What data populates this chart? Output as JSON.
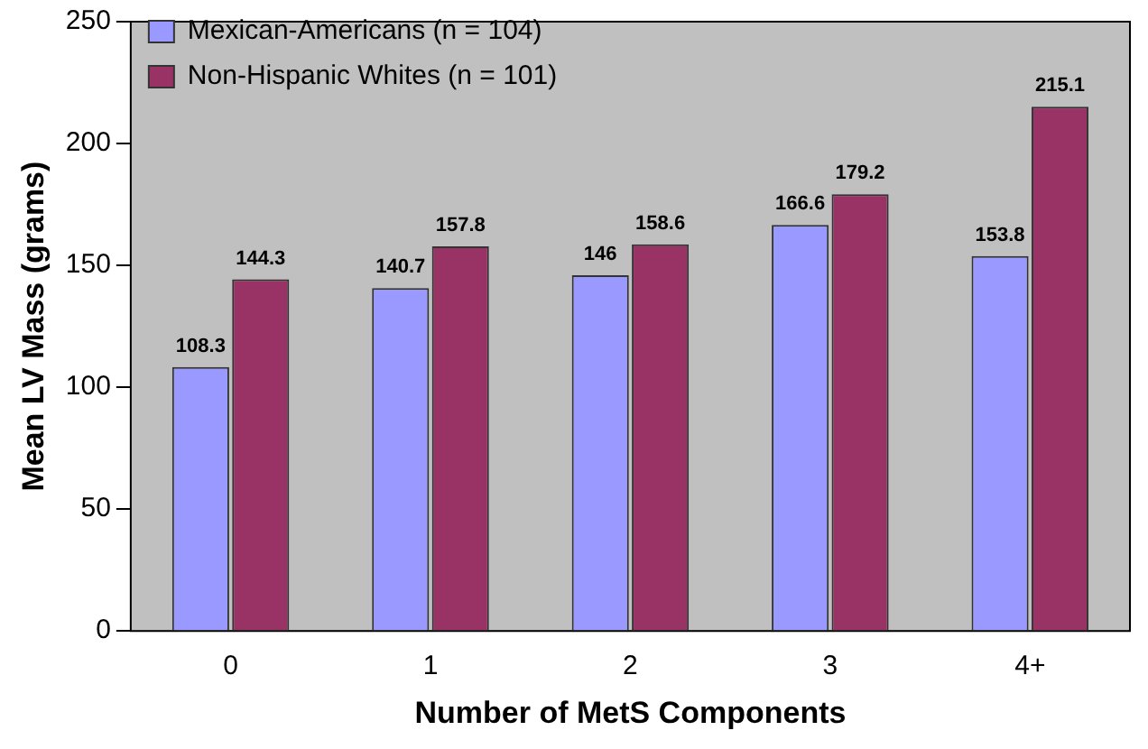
{
  "chart_data": {
    "type": "bar",
    "xlabel": "Number of MetS Components",
    "ylabel": "Mean LV Mass (grams)",
    "categories": [
      "0",
      "1",
      "2",
      "3",
      "4+"
    ],
    "series": [
      {
        "name": "Mexican-Americans (n = 104)",
        "color": "#9999ff",
        "values": [
          108.3,
          140.7,
          146,
          166.6,
          153.8
        ]
      },
      {
        "name": "Non-Hispanic Whites (n = 101)",
        "color": "#993366",
        "values": [
          144.3,
          157.8,
          158.6,
          179.2,
          215.1
        ]
      }
    ],
    "ylim": [
      0,
      250
    ],
    "yticks": [
      0,
      50,
      100,
      150,
      200,
      250
    ],
    "grid": false,
    "legend": "top left",
    "data_labels": true
  }
}
